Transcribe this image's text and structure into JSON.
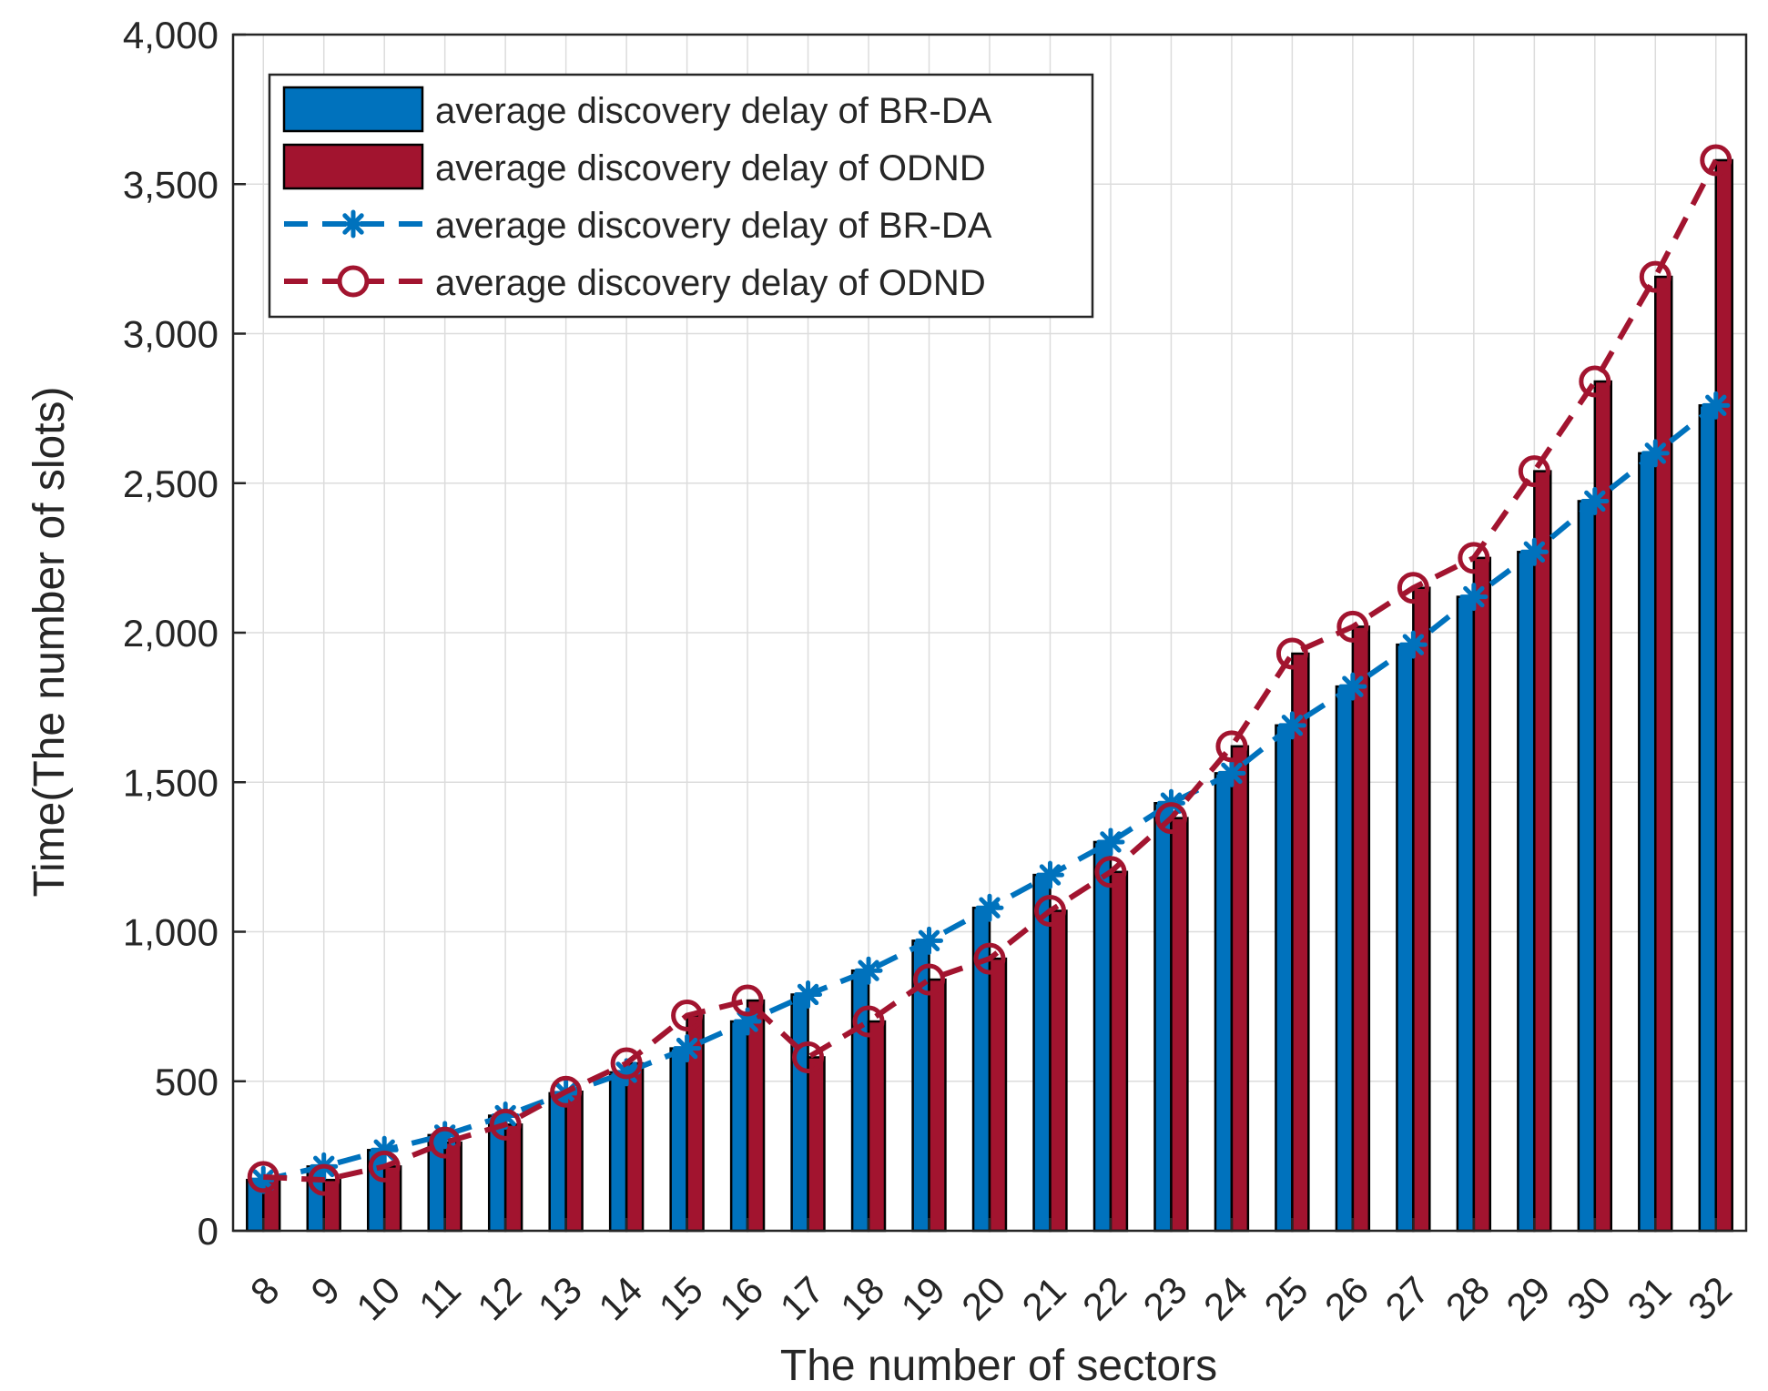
{
  "chart_data": {
    "type": "bar",
    "title": "",
    "xlabel": "The number of sectors",
    "ylabel": "Time(The number of slots)",
    "ylim": [
      0,
      4000
    ],
    "yticks": [
      0,
      500,
      1000,
      1500,
      2000,
      2500,
      3000,
      3500,
      4000
    ],
    "ytick_labels": [
      "0",
      "500",
      "1,000",
      "1,500",
      "2,000",
      "2,500",
      "3,000",
      "3,500",
      "4,000"
    ],
    "grid": true,
    "legend_position": "top-left",
    "categories": [
      "8",
      "9",
      "10",
      "11",
      "12",
      "13",
      "14",
      "15",
      "16",
      "17",
      "18",
      "19",
      "20",
      "21",
      "22",
      "23",
      "24",
      "25",
      "26",
      "27",
      "28",
      "29",
      "30",
      "31",
      "32"
    ],
    "series": [
      {
        "name": "average discovery delay of BR-DA",
        "kind": "bar",
        "color": "#0072BD",
        "values": [
          170,
          215,
          270,
          320,
          385,
          460,
          530,
          610,
          700,
          790,
          870,
          970,
          1080,
          1190,
          1300,
          1430,
          1530,
          1690,
          1820,
          1960,
          2120,
          2270,
          2440,
          2600,
          2760
        ]
      },
      {
        "name": "average discovery delay of ODND",
        "kind": "bar",
        "color": "#A2142F",
        "values": [
          180,
          170,
          215,
          295,
          355,
          465,
          560,
          720,
          770,
          580,
          700,
          840,
          910,
          1070,
          1200,
          1380,
          1620,
          1930,
          2020,
          2150,
          2250,
          2540,
          2840,
          3190,
          3580
        ]
      },
      {
        "name": "average discovery delay of BR-DA",
        "kind": "line",
        "marker": "asterisk",
        "color": "#0072BD",
        "values": [
          170,
          215,
          270,
          320,
          385,
          460,
          530,
          610,
          700,
          790,
          870,
          970,
          1080,
          1190,
          1300,
          1430,
          1530,
          1690,
          1820,
          1960,
          2120,
          2270,
          2440,
          2600,
          2760
        ]
      },
      {
        "name": "average discovery delay of ODND",
        "kind": "line",
        "marker": "circle",
        "color": "#A2142F",
        "values": [
          180,
          170,
          215,
          295,
          355,
          465,
          560,
          720,
          770,
          580,
          700,
          840,
          910,
          1070,
          1200,
          1380,
          1620,
          1930,
          2020,
          2150,
          2250,
          2540,
          2840,
          3190,
          3580
        ]
      }
    ]
  }
}
